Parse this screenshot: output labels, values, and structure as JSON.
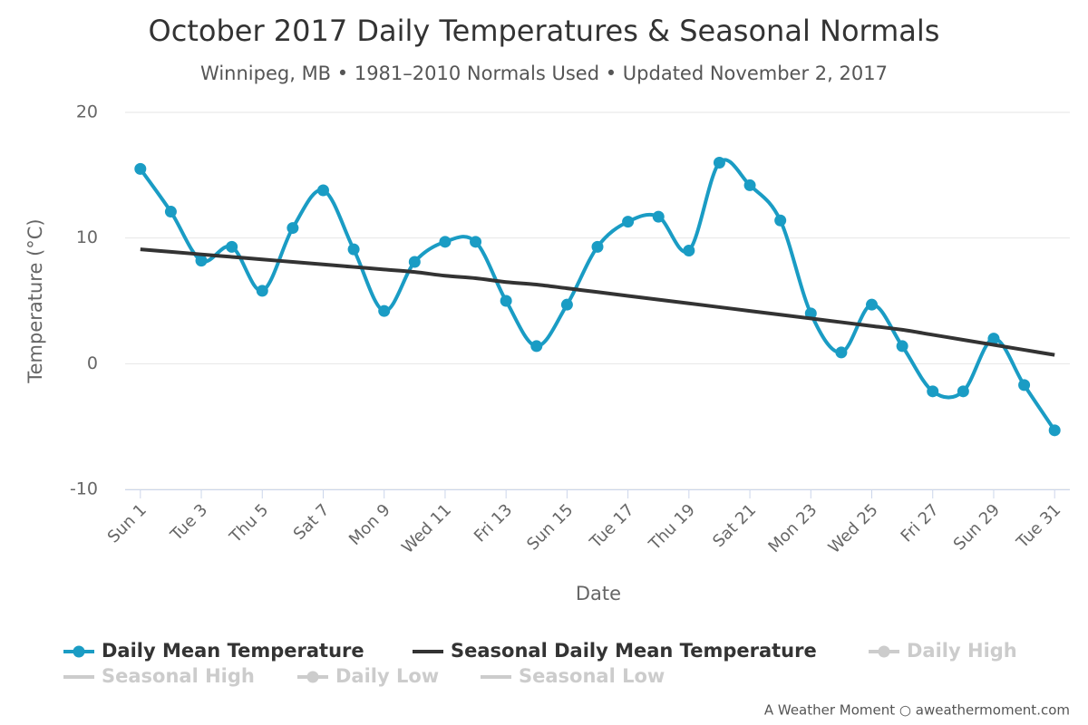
{
  "chart_data": {
    "type": "line",
    "title": "October 2017 Daily Temperatures & Seasonal Normals",
    "subtitle": "Winnipeg, MB • 1981–2010 Normals Used • Updated November 2, 2017",
    "x_label": "Date",
    "y_label": "Temperature (°C)",
    "credits": "A Weather Moment ○ aweathermoment.com",
    "categories": [
      "Sun 1",
      null,
      "Tue 3",
      null,
      "Thu 5",
      null,
      "Sat 7",
      null,
      "Mon 9",
      null,
      "Wed 11",
      null,
      "Fri 13",
      null,
      "Sun 15",
      null,
      "Tue 17",
      null,
      "Thu 19",
      null,
      "Sat 21",
      null,
      "Mon 23",
      null,
      "Wed 25",
      null,
      "Fri 27",
      null,
      "Sun 29",
      null,
      "Tue 31"
    ],
    "ylim": [
      -10,
      20
    ],
    "yticks": [
      -10,
      0,
      10,
      20
    ],
    "grid": true,
    "series": [
      {
        "name": "Daily Mean Temperature",
        "color": "#1a9cc4",
        "marker": true,
        "visible": true,
        "values": [
          15.5,
          12.1,
          8.2,
          9.3,
          5.8,
          10.8,
          13.8,
          9.1,
          4.2,
          8.1,
          9.7,
          9.7,
          5.0,
          1.4,
          4.7,
          9.3,
          11.3,
          11.7,
          9.0,
          16.0,
          14.2,
          11.4,
          4.0,
          0.9,
          4.7,
          1.4,
          -2.2,
          -2.2,
          2.0,
          -1.7,
          -5.3
        ]
      },
      {
        "name": "Seasonal Daily Mean Temperature",
        "color": "#333333",
        "marker": false,
        "visible": true,
        "values": [
          9.1,
          8.9,
          8.7,
          8.5,
          8.3,
          8.1,
          7.9,
          7.7,
          7.5,
          7.3,
          7.0,
          6.8,
          6.5,
          6.3,
          6.0,
          5.7,
          5.4,
          5.1,
          4.8,
          4.5,
          4.2,
          3.9,
          3.6,
          3.3,
          3.0,
          2.7,
          2.3,
          1.9,
          1.5,
          1.1,
          0.7
        ]
      },
      {
        "name": "Daily High",
        "marker": true,
        "visible": false
      },
      {
        "name": "Seasonal High",
        "marker": false,
        "visible": false
      },
      {
        "name": "Daily Low",
        "marker": true,
        "visible": false
      },
      {
        "name": "Seasonal Low",
        "marker": false,
        "visible": false
      }
    ]
  }
}
